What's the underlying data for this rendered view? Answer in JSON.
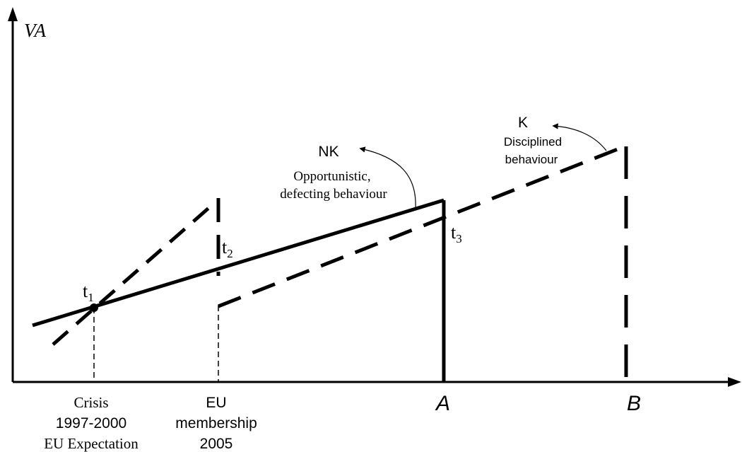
{
  "axes": {
    "y_label": "VA"
  },
  "x_axis_labels": {
    "crisis": [
      "Crisis",
      "1997-2000",
      "EU Expectation"
    ],
    "eu": [
      "EU",
      "membership",
      "2005"
    ],
    "a": "A",
    "b": "B"
  },
  "points": {
    "t1": {
      "base": "t",
      "sub": "1"
    },
    "t2": {
      "base": "t",
      "sub": "2"
    },
    "t3": {
      "base": "t",
      "sub": "3"
    }
  },
  "annotations": {
    "nk_title": "NK",
    "nk_desc": [
      "Opportunistic,",
      "defecting behaviour"
    ],
    "k_title": "K",
    "k_desc": [
      "Disciplined",
      "behaviour"
    ]
  },
  "colors": {
    "stroke": "#000000",
    "background": "#ffffff"
  }
}
